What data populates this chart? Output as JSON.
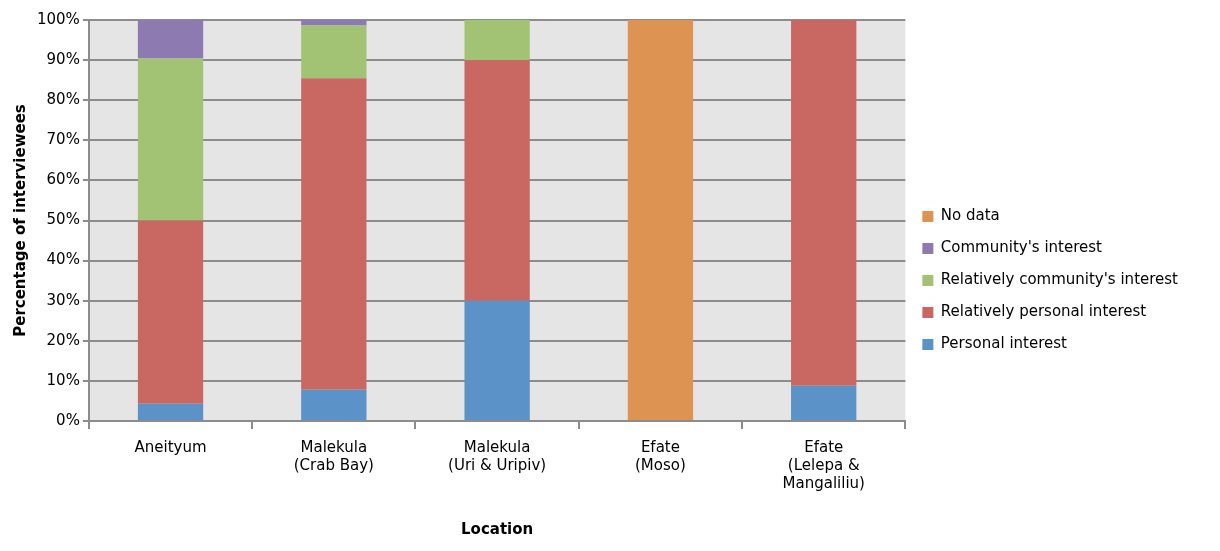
{
  "chart_data": {
    "type": "bar",
    "stacked": true,
    "xlabel": "Location",
    "ylabel": "Percentage of interviewees",
    "categories": [
      "Aneityum",
      "Malekula\n(Crab Bay)",
      "Malekula\n(Uri & Uripiv)",
      "Efate\n(Moso)",
      "Efate\n(Lelepa &\nMangaliliu)"
    ],
    "series": [
      {
        "name": "Personal interest",
        "color": "#5b92c8",
        "values": [
          4.3,
          7.8,
          30,
          null,
          8.8
        ]
      },
      {
        "name": "Relatively personal interest",
        "color": "#c96863",
        "values": [
          45.7,
          77.7,
          60,
          null,
          91.2
        ]
      },
      {
        "name": "Relatively community's interest",
        "color": "#a2c373",
        "values": [
          40.4,
          13.1,
          10,
          null,
          null
        ]
      },
      {
        "name": "Community's interest",
        "color": "#8d7ab0",
        "values": [
          9.6,
          1.4,
          null,
          null,
          null
        ]
      },
      {
        "name": "No data",
        "color": "#dd9452",
        "values": [
          null,
          null,
          null,
          100,
          null
        ]
      }
    ],
    "ylim": [
      0,
      100
    ],
    "yticks": [
      {
        "value": 0,
        "label": "0%"
      },
      {
        "value": 10,
        "label": "10%"
      },
      {
        "value": 20,
        "label": "20%"
      },
      {
        "value": 30,
        "label": "30%"
      },
      {
        "value": 40,
        "label": "40%"
      },
      {
        "value": 50,
        "label": "50%"
      },
      {
        "value": 60,
        "label": "60%"
      },
      {
        "value": 70,
        "label": "70%"
      },
      {
        "value": 80,
        "label": "80%"
      },
      {
        "value": 90,
        "label": "90%"
      },
      {
        "value": 100,
        "label": "100%"
      }
    ],
    "grid": "y",
    "legend": "right"
  }
}
